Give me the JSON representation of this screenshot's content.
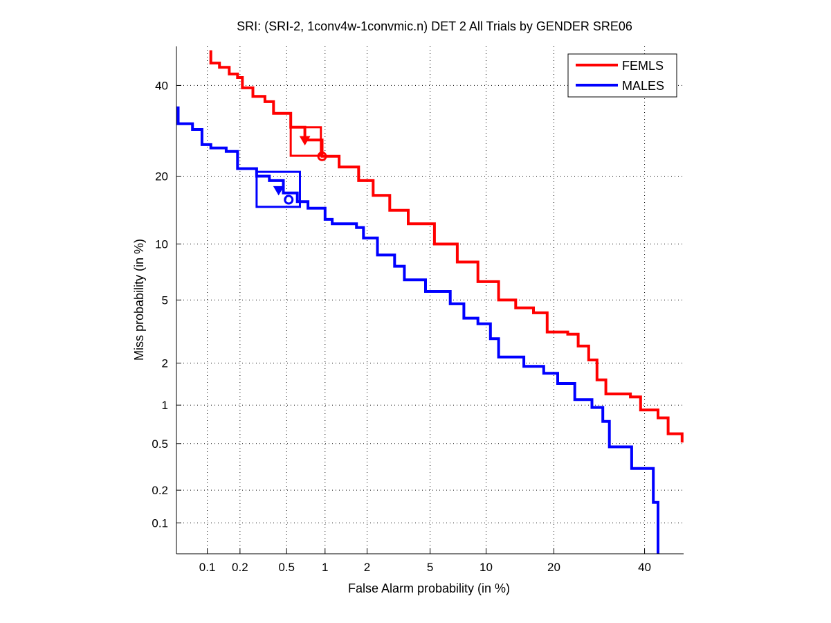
{
  "chart_data": {
    "type": "line",
    "subtype": "DET (normal deviate scale)",
    "title": "SRI: (SRI-2, 1conv4w-1convmic.n) DET 2 All Trials by GENDER SRE06",
    "xlabel": "False Alarm probability (in %)",
    "ylabel": "Miss probability (in %)",
    "xscale": "probit",
    "yscale": "probit",
    "xlim": [
      0.05,
      50
    ],
    "ylim": [
      0.05,
      50
    ],
    "xticks": [
      0.1,
      0.2,
      0.5,
      1,
      2,
      5,
      10,
      20,
      40
    ],
    "xtick_labels": [
      "0.1",
      "0.2",
      "0.5",
      "1",
      "2",
      "5",
      "10",
      "20",
      "40"
    ],
    "yticks": [
      0.1,
      0.2,
      0.5,
      1,
      2,
      5,
      10,
      20,
      40
    ],
    "ytick_labels": [
      "0.1",
      "0.2",
      "0.5",
      "1",
      "2",
      "5",
      "10",
      "20",
      "40"
    ],
    "grid": true,
    "legend_position": "top-right",
    "series": [
      {
        "name": "FEMLS",
        "color": "#ff0000",
        "x": [
          0.108,
          0.108,
          0.13,
          0.13,
          0.16,
          0.16,
          0.19,
          0.21,
          0.21,
          0.26,
          0.33,
          0.39,
          0.54,
          0.7,
          0.95,
          1.27,
          1.75,
          2.2,
          2.83,
          3.7,
          5.3,
          7.1,
          9.1,
          11.5,
          13.8,
          16.5,
          18.8,
          22.6,
          24.7,
          26.9,
          28.7,
          30.7,
          36.5,
          39.0,
          43.4,
          46.0,
          49.6
        ],
        "y": [
          49.0,
          45.7,
          45.7,
          44.6,
          44.6,
          42.9,
          42.0,
          42.0,
          39.4,
          37.3,
          36.0,
          33.2,
          30.0,
          27.2,
          23.8,
          21.7,
          19.2,
          16.7,
          14.4,
          12.5,
          10.0,
          8.1,
          6.35,
          5.0,
          4.5,
          4.2,
          3.2,
          3.1,
          2.6,
          2.1,
          1.53,
          1.21,
          1.15,
          0.92,
          0.8,
          0.6,
          0.51
        ]
      },
      {
        "name": "MALES",
        "color": "#0000ff",
        "x": [
          0.05,
          0.052,
          0.052,
          0.072,
          0.072,
          0.089,
          0.089,
          0.108,
          0.15,
          0.19,
          0.19,
          0.28,
          0.36,
          0.47,
          0.61,
          0.74,
          1.0,
          1.13,
          1.69,
          1.89,
          2.35,
          3.04,
          3.5,
          4.7,
          5.4,
          6.5,
          7.7,
          9.1,
          10.5,
          11.5,
          14.1,
          15.0,
          18.2,
          20.7,
          24.0,
          27.6,
          30.0,
          31.5,
          36.8,
          36.8,
          42.2,
          42.2,
          43.4,
          43.4
        ],
        "y": [
          34.5,
          34.5,
          30.8,
          30.8,
          29.5,
          29.5,
          26.2,
          25.5,
          24.8,
          24.0,
          21.4,
          20.0,
          19.2,
          17.1,
          15.7,
          14.7,
          13.1,
          12.5,
          12.0,
          10.7,
          8.8,
          7.7,
          6.5,
          5.6,
          5.6,
          4.75,
          3.9,
          3.6,
          2.9,
          2.2,
          2.2,
          1.9,
          1.7,
          1.44,
          1.1,
          0.96,
          0.75,
          0.47,
          0.47,
          0.31,
          0.31,
          0.155,
          0.155,
          0.05
        ]
      }
    ],
    "annotations": [
      {
        "series": "FEMLS",
        "type": "box",
        "x_range": [
          0.54,
          0.93
        ],
        "y_range": [
          23.9,
          30.0
        ]
      },
      {
        "series": "FEMLS",
        "type": "triangle-marker",
        "x": 0.7,
        "y": 27.2
      },
      {
        "series": "FEMLS",
        "type": "circle-marker",
        "x": 0.95,
        "y": 23.8
      },
      {
        "series": "MALES",
        "type": "box",
        "x_range": [
          0.28,
          0.64
        ],
        "y_range": [
          14.9,
          20.8
        ]
      },
      {
        "series": "MALES",
        "type": "triangle-marker",
        "x": 0.43,
        "y": 17.6
      },
      {
        "series": "MALES",
        "type": "circle-marker",
        "x": 0.52,
        "y": 16.0
      }
    ]
  }
}
